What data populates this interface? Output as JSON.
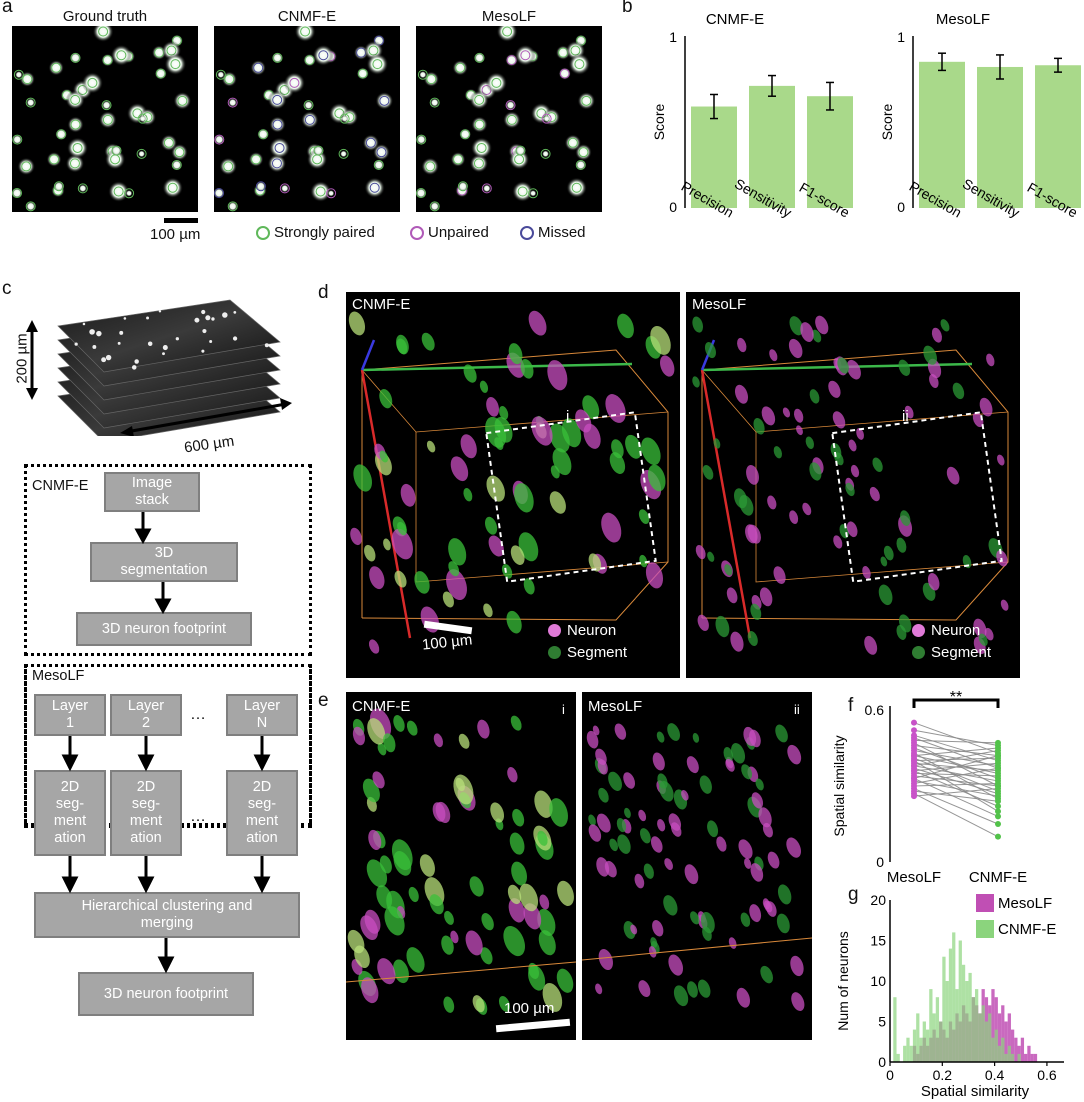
{
  "panels": {
    "a": "a",
    "b": "b",
    "c": "c",
    "d": "d",
    "e": "e",
    "f": "f",
    "g": "g"
  },
  "panel_a": {
    "titles": [
      "Ground truth",
      "CNMF-E",
      "MesoLF"
    ],
    "scalebar": "100 µm",
    "legend": [
      {
        "label": "Strongly paired",
        "color": "#5fb85a"
      },
      {
        "label": "Unpaired",
        "color": "#b05ab8"
      },
      {
        "label": "Missed",
        "color": "#4a4a9a"
      }
    ]
  },
  "panel_c": {
    "stack_z": "200 µm",
    "stack_xy": "600 µm",
    "cnmfe": {
      "label": "CNMF-E",
      "boxes": [
        "Image stack",
        "3D segmentation",
        "3D neuron footprint"
      ]
    },
    "mesolf": {
      "label": "MesoLF",
      "layers": [
        "Layer 1",
        "Layer 2",
        "Layer N"
      ],
      "ellipsis": "…",
      "seg": "2D seg-ment ation",
      "cluster": "Hierarchical clustering and merging",
      "footprint": "3D neuron footprint"
    }
  },
  "panel_d": {
    "left": {
      "title": "CNMF-E",
      "roi": "i"
    },
    "right": {
      "title": "MesoLF",
      "roi": "ii"
    },
    "scalebar": "100 µm",
    "legend": [
      {
        "label": "Neuron",
        "color": "#e07ad8"
      },
      {
        "label": "Segment",
        "color": "#2f7d32"
      }
    ]
  },
  "panel_e": {
    "left": {
      "title": "CNMF-E",
      "roi": "i"
    },
    "right": {
      "title": "MesoLF",
      "roi": "ii"
    },
    "scalebar": "100 µm"
  },
  "chart_data": [
    {
      "id": "b-cnmfe",
      "type": "bar",
      "title": "CNMF-E",
      "categories": [
        "Precision",
        "Sensitivity",
        "F1-score"
      ],
      "values": [
        0.59,
        0.71,
        0.65
      ],
      "errors": [
        0.07,
        0.06,
        0.08
      ],
      "ylabel": "Score",
      "ylim": [
        0,
        1
      ],
      "yticks": [
        "0",
        "1"
      ],
      "color": "#a9d98a"
    },
    {
      "id": "b-mesolf",
      "type": "bar",
      "title": "MesoLF",
      "categories": [
        "Precision",
        "Sensitivity",
        "F1-score"
      ],
      "values": [
        0.85,
        0.82,
        0.83
      ],
      "errors": [
        0.05,
        0.07,
        0.04
      ],
      "ylabel": "Score",
      "ylim": [
        0,
        1
      ],
      "yticks": [
        "0",
        "1"
      ],
      "color": "#a9d98a"
    },
    {
      "id": "f",
      "type": "scatter",
      "categories": [
        "MesoLF",
        "CNMF-E"
      ],
      "ylabel": "Spatial similarity",
      "ylim": [
        0,
        0.6
      ],
      "yticks": [
        "0",
        "0.6"
      ],
      "significance": "**",
      "pairs": [
        [
          0.55,
          0.43
        ],
        [
          0.52,
          0.46
        ],
        [
          0.5,
          0.4
        ],
        [
          0.49,
          0.37
        ],
        [
          0.48,
          0.47
        ],
        [
          0.47,
          0.3
        ],
        [
          0.46,
          0.42
        ],
        [
          0.45,
          0.33
        ],
        [
          0.44,
          0.38
        ],
        [
          0.43,
          0.25
        ],
        [
          0.42,
          0.45
        ],
        [
          0.42,
          0.35
        ],
        [
          0.41,
          0.28
        ],
        [
          0.4,
          0.41
        ],
        [
          0.4,
          0.2
        ],
        [
          0.39,
          0.36
        ],
        [
          0.38,
          0.32
        ],
        [
          0.38,
          0.44
        ],
        [
          0.37,
          0.27
        ],
        [
          0.36,
          0.39
        ],
        [
          0.36,
          0.22
        ],
        [
          0.35,
          0.34
        ],
        [
          0.34,
          0.3
        ],
        [
          0.33,
          0.42
        ],
        [
          0.33,
          0.18
        ],
        [
          0.32,
          0.26
        ],
        [
          0.31,
          0.37
        ],
        [
          0.3,
          0.31
        ],
        [
          0.29,
          0.15
        ],
        [
          0.28,
          0.24
        ],
        [
          0.27,
          0.1
        ],
        [
          0.26,
          0.29
        ]
      ],
      "colors": {
        "MesoLF": "#c853c8",
        "CNMF-E": "#52c24a"
      }
    },
    {
      "id": "g",
      "type": "bar",
      "title": "",
      "xlabel": "Spatial similarity",
      "ylabel": "Num of neurons",
      "xlim": [
        0,
        0.65
      ],
      "ylim": [
        0,
        20
      ],
      "xticks": [
        "0",
        "0.2",
        "0.4",
        "0.6"
      ],
      "yticks": [
        "0",
        "5",
        "10",
        "15",
        "20"
      ],
      "bin_width": 0.0125,
      "series": [
        {
          "name": "MesoLF",
          "color": "#c04fb4",
          "values": [
            0,
            0,
            0,
            0,
            0,
            0,
            0,
            2,
            1,
            2,
            3,
            2,
            3,
            4,
            3,
            5,
            4,
            3,
            5,
            4,
            6,
            5,
            7,
            6,
            5,
            8,
            7,
            6,
            9,
            8,
            7,
            9,
            8,
            6,
            7,
            5,
            6,
            4,
            3,
            2,
            3,
            1,
            2,
            1,
            1,
            0,
            0,
            0,
            0,
            0,
            0,
            0
          ]
        },
        {
          "name": "CNMF-E",
          "color": "#8bd47d",
          "values": [
            0,
            8,
            1,
            0,
            2,
            3,
            2,
            4,
            6,
            3,
            5,
            4,
            9,
            6,
            8,
            5,
            13,
            10,
            14,
            16,
            9,
            15,
            12,
            10,
            11,
            8,
            9,
            6,
            7,
            5,
            6,
            3,
            4,
            2,
            3,
            1,
            2,
            1,
            0,
            1,
            0,
            0,
            0,
            0,
            0,
            0,
            0,
            0,
            0,
            0,
            0,
            0
          ]
        }
      ]
    }
  ]
}
